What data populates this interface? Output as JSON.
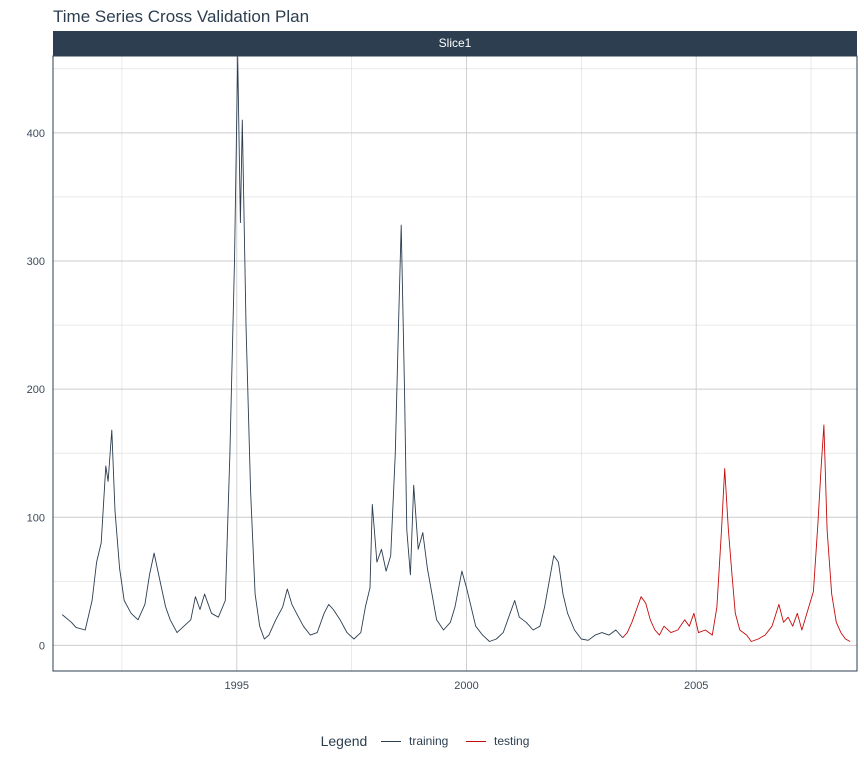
{
  "chart_data": {
    "type": "line",
    "title": "Time Series Cross Validation Plan",
    "facet": "Slice1",
    "xlabel": "",
    "ylabel": "",
    "xlim": [
      1991.0,
      2008.5
    ],
    "ylim": [
      -20,
      460
    ],
    "x_ticks": [
      1995,
      2000,
      2005
    ],
    "y_ticks": [
      0,
      100,
      200,
      300,
      400
    ],
    "grid": true,
    "legend": {
      "title": "Legend",
      "position": "bottom"
    },
    "series": [
      {
        "name": "training",
        "color": "#2c3e50",
        "points": [
          [
            1991.2,
            24
          ],
          [
            1991.4,
            18
          ],
          [
            1991.5,
            14
          ],
          [
            1991.7,
            12
          ],
          [
            1991.85,
            35
          ],
          [
            1991.95,
            65
          ],
          [
            1992.05,
            80
          ],
          [
            1992.15,
            140
          ],
          [
            1992.2,
            128
          ],
          [
            1992.28,
            168
          ],
          [
            1992.35,
            105
          ],
          [
            1992.45,
            60
          ],
          [
            1992.55,
            35
          ],
          [
            1992.7,
            25
          ],
          [
            1992.85,
            20
          ],
          [
            1993.0,
            32
          ],
          [
            1993.1,
            55
          ],
          [
            1993.2,
            72
          ],
          [
            1993.3,
            55
          ],
          [
            1993.45,
            30
          ],
          [
            1993.55,
            20
          ],
          [
            1993.7,
            10
          ],
          [
            1993.85,
            15
          ],
          [
            1994.0,
            20
          ],
          [
            1994.1,
            38
          ],
          [
            1994.2,
            28
          ],
          [
            1994.3,
            40
          ],
          [
            1994.45,
            25
          ],
          [
            1994.6,
            22
          ],
          [
            1994.75,
            35
          ],
          [
            1994.85,
            150
          ],
          [
            1994.95,
            300
          ],
          [
            1995.02,
            460
          ],
          [
            1995.08,
            330
          ],
          [
            1995.12,
            410
          ],
          [
            1995.2,
            250
          ],
          [
            1995.3,
            120
          ],
          [
            1995.4,
            40
          ],
          [
            1995.5,
            15
          ],
          [
            1995.6,
            5
          ],
          [
            1995.7,
            8
          ],
          [
            1995.85,
            20
          ],
          [
            1996.0,
            30
          ],
          [
            1996.1,
            44
          ],
          [
            1996.2,
            32
          ],
          [
            1996.3,
            25
          ],
          [
            1996.45,
            15
          ],
          [
            1996.6,
            8
          ],
          [
            1996.75,
            10
          ],
          [
            1996.9,
            25
          ],
          [
            1997.0,
            32
          ],
          [
            1997.1,
            28
          ],
          [
            1997.25,
            20
          ],
          [
            1997.4,
            10
          ],
          [
            1997.55,
            5
          ],
          [
            1997.7,
            10
          ],
          [
            1997.8,
            30
          ],
          [
            1997.9,
            45
          ],
          [
            1997.95,
            110
          ],
          [
            1998.05,
            65
          ],
          [
            1998.15,
            75
          ],
          [
            1998.25,
            58
          ],
          [
            1998.35,
            70
          ],
          [
            1998.45,
            150
          ],
          [
            1998.52,
            250
          ],
          [
            1998.58,
            328
          ],
          [
            1998.65,
            200
          ],
          [
            1998.7,
            90
          ],
          [
            1998.78,
            55
          ],
          [
            1998.85,
            125
          ],
          [
            1998.95,
            75
          ],
          [
            1999.05,
            88
          ],
          [
            1999.15,
            60
          ],
          [
            1999.25,
            40
          ],
          [
            1999.35,
            20
          ],
          [
            1999.5,
            12
          ],
          [
            1999.65,
            18
          ],
          [
            1999.75,
            30
          ],
          [
            1999.9,
            58
          ],
          [
            2000.0,
            45
          ],
          [
            2000.1,
            30
          ],
          [
            2000.2,
            15
          ],
          [
            2000.35,
            8
          ],
          [
            2000.5,
            3
          ],
          [
            2000.65,
            5
          ],
          [
            2000.8,
            10
          ],
          [
            2000.95,
            25
          ],
          [
            2001.05,
            35
          ],
          [
            2001.15,
            22
          ],
          [
            2001.3,
            18
          ],
          [
            2001.45,
            12
          ],
          [
            2001.6,
            15
          ],
          [
            2001.7,
            30
          ],
          [
            2001.8,
            50
          ],
          [
            2001.9,
            70
          ],
          [
            2002.0,
            65
          ],
          [
            2002.1,
            40
          ],
          [
            2002.2,
            25
          ],
          [
            2002.35,
            12
          ],
          [
            2002.5,
            5
          ],
          [
            2002.65,
            4
          ],
          [
            2002.8,
            8
          ],
          [
            2002.95,
            10
          ],
          [
            2003.1,
            8
          ],
          [
            2003.25,
            12
          ],
          [
            2003.4,
            6
          ]
        ]
      },
      {
        "name": "testing",
        "color": "#c40c0c",
        "points": [
          [
            2003.4,
            6
          ],
          [
            2003.5,
            10
          ],
          [
            2003.6,
            18
          ],
          [
            2003.7,
            28
          ],
          [
            2003.8,
            38
          ],
          [
            2003.9,
            33
          ],
          [
            2004.0,
            20
          ],
          [
            2004.1,
            12
          ],
          [
            2004.2,
            8
          ],
          [
            2004.3,
            15
          ],
          [
            2004.45,
            10
          ],
          [
            2004.6,
            12
          ],
          [
            2004.75,
            20
          ],
          [
            2004.85,
            15
          ],
          [
            2004.95,
            25
          ],
          [
            2005.05,
            10
          ],
          [
            2005.2,
            12
          ],
          [
            2005.35,
            8
          ],
          [
            2005.45,
            30
          ],
          [
            2005.55,
            90
          ],
          [
            2005.62,
            138
          ],
          [
            2005.7,
            90
          ],
          [
            2005.78,
            55
          ],
          [
            2005.85,
            25
          ],
          [
            2005.95,
            12
          ],
          [
            2006.1,
            8
          ],
          [
            2006.2,
            3
          ],
          [
            2006.35,
            5
          ],
          [
            2006.5,
            8
          ],
          [
            2006.65,
            15
          ],
          [
            2006.8,
            32
          ],
          [
            2006.9,
            18
          ],
          [
            2007.0,
            22
          ],
          [
            2007.1,
            15
          ],
          [
            2007.2,
            25
          ],
          [
            2007.3,
            12
          ],
          [
            2007.45,
            30
          ],
          [
            2007.55,
            42
          ],
          [
            2007.65,
            95
          ],
          [
            2007.72,
            140
          ],
          [
            2007.78,
            172
          ],
          [
            2007.85,
            90
          ],
          [
            2007.95,
            40
          ],
          [
            2008.05,
            18
          ],
          [
            2008.15,
            10
          ],
          [
            2008.25,
            5
          ],
          [
            2008.35,
            3
          ]
        ]
      }
    ]
  }
}
